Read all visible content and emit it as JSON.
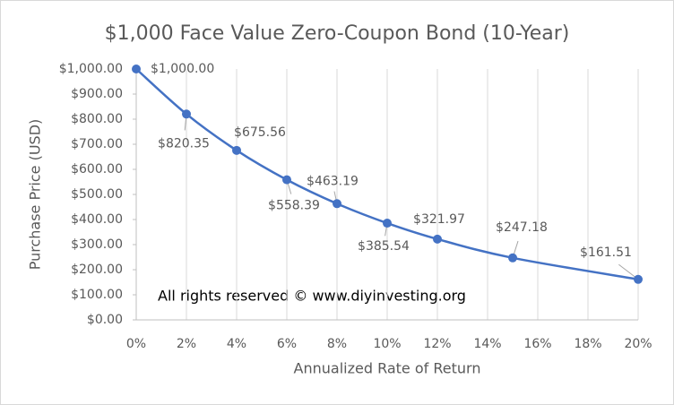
{
  "chart_data": {
    "type": "line",
    "title": "$1,000 Face Value Zero-Coupon Bond (10-Year)",
    "x_label": "Annualized Rate of Return",
    "y_label": "Purchase Price (USD)",
    "annotation": "All rights reserved © www.diyinvesting.org",
    "x": [
      0,
      2,
      4,
      6,
      8,
      10,
      12,
      15,
      20
    ],
    "series": [
      {
        "name": "Purchase Price",
        "color": "#4472c4",
        "values": [
          1000,
          820.35,
          675.56,
          558.39,
          463.19,
          385.54,
          321.97,
          247.18,
          161.51
        ],
        "value_labels": [
          "$1,000.00",
          "$820.35",
          "$675.56",
          "$558.39",
          "$463.19",
          "$385.54",
          "$321.97",
          "$247.18",
          "$161.51"
        ]
      }
    ],
    "xlim": [
      0,
      20
    ],
    "ylim": [
      0,
      1000
    ],
    "xticks": [
      {
        "value": 0,
        "label": "0%"
      },
      {
        "value": 2,
        "label": "2%"
      },
      {
        "value": 4,
        "label": "4%"
      },
      {
        "value": 6,
        "label": "6%"
      },
      {
        "value": 8,
        "label": "8%"
      },
      {
        "value": 10,
        "label": "10%"
      },
      {
        "value": 12,
        "label": "12%"
      },
      {
        "value": 14,
        "label": "14%"
      },
      {
        "value": 16,
        "label": "16%"
      },
      {
        "value": 18,
        "label": "18%"
      },
      {
        "value": 20,
        "label": "20%"
      }
    ],
    "yticks": [
      {
        "value": 0,
        "label": "$0.00"
      },
      {
        "value": 100,
        "label": "$100.00"
      },
      {
        "value": 200,
        "label": "$200.00"
      },
      {
        "value": 300,
        "label": "$300.00"
      },
      {
        "value": 400,
        "label": "$400.00"
      },
      {
        "value": 500,
        "label": "$500.00"
      },
      {
        "value": 600,
        "label": "$600.00"
      },
      {
        "value": 700,
        "label": "$700.00"
      },
      {
        "value": 800,
        "label": "$800.00"
      },
      {
        "value": 900,
        "label": "$900.00"
      },
      {
        "value": 1000,
        "label": "$1,000.00"
      }
    ],
    "grid": "x"
  }
}
